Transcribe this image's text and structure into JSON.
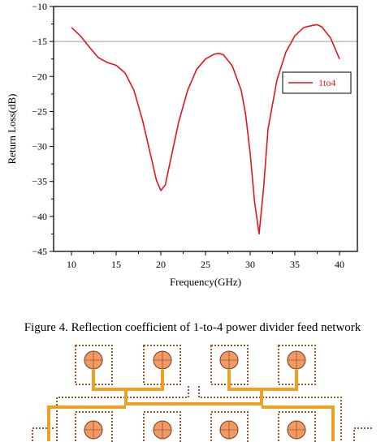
{
  "chart_data": {
    "type": "line",
    "xlabel": "Frequency(GHz)",
    "ylabel": "Return Loss(dB)",
    "xlim": [
      8,
      42
    ],
    "ylim": [
      -45,
      -10
    ],
    "x_ticks": [
      10,
      15,
      20,
      25,
      30,
      35,
      40
    ],
    "x_tick_labels": [
      "10",
      "15",
      "20",
      "25",
      "30",
      "35",
      "40"
    ],
    "y_ticks": [
      -10,
      -15,
      -20,
      -25,
      -30,
      -35,
      -40,
      -45
    ],
    "y_tick_labels": [
      "−10",
      "−15",
      "−20",
      "−25",
      "−30",
      "−35",
      "−40",
      "−45"
    ],
    "reference_line": -15,
    "grid": false,
    "legend_position": "right",
    "series": [
      {
        "name": "1to4",
        "color": "#e8141b",
        "x": [
          10,
          11,
          12,
          13,
          14,
          15,
          16,
          17,
          18,
          19,
          19.5,
          20,
          20.5,
          21,
          22,
          23,
          24,
          25,
          26,
          26.5,
          27,
          28,
          29,
          29.5,
          30,
          30.5,
          31,
          31.5,
          32,
          33,
          34,
          35,
          36,
          37,
          37.5,
          38,
          39,
          40
        ],
        "y": [
          -13.0,
          -14.2,
          -15.8,
          -17.3,
          -18.0,
          -18.4,
          -19.5,
          -22.0,
          -26.5,
          -32.0,
          -34.8,
          -36.3,
          -35.5,
          -32.5,
          -26.5,
          -22.0,
          -19.0,
          -17.5,
          -16.8,
          -16.7,
          -16.9,
          -18.5,
          -22.0,
          -25.5,
          -31.0,
          -38.0,
          -42.5,
          -36.0,
          -27.5,
          -20.5,
          -16.5,
          -14.2,
          -13.0,
          -12.7,
          -12.6,
          -12.9,
          -14.5,
          -17.5
        ]
      }
    ]
  },
  "caption": "Figure 4. Reflection coefficient of 1-to-4 power divider feed network"
}
